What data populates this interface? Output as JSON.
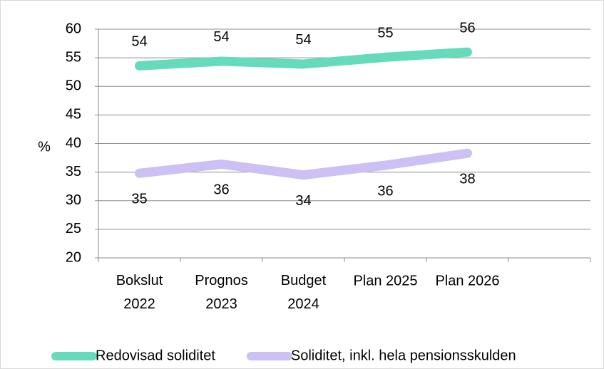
{
  "chart_data": {
    "type": "line",
    "y_label": "%",
    "categories": [
      "Bokslut 2022",
      "Prognos 2023",
      "Budget 2024",
      "Plan 2025",
      "Plan 2026",
      null
    ],
    "series": [
      {
        "name": "Redovisad soliditet",
        "color": "#66dbbc",
        "values": [
          53.6,
          54.4,
          53.9,
          55.1,
          56.0,
          null
        ],
        "value_labels": [
          "54",
          "54",
          "54",
          "55",
          "56",
          null
        ],
        "label_position": "above"
      },
      {
        "name": "Soliditet, inkl. hela pensionsskulden",
        "color": "#ccc0f5",
        "values": [
          34.8,
          36.4,
          34.5,
          36.2,
          38.3,
          null
        ],
        "value_labels": [
          "35",
          "36",
          "34",
          "36",
          "38",
          null
        ],
        "label_position": "below"
      }
    ],
    "ylim": [
      20,
      60
    ],
    "yticks": [
      20,
      25,
      30,
      35,
      40,
      45,
      50,
      55,
      60
    ],
    "grid": true,
    "legend": "bottom"
  }
}
